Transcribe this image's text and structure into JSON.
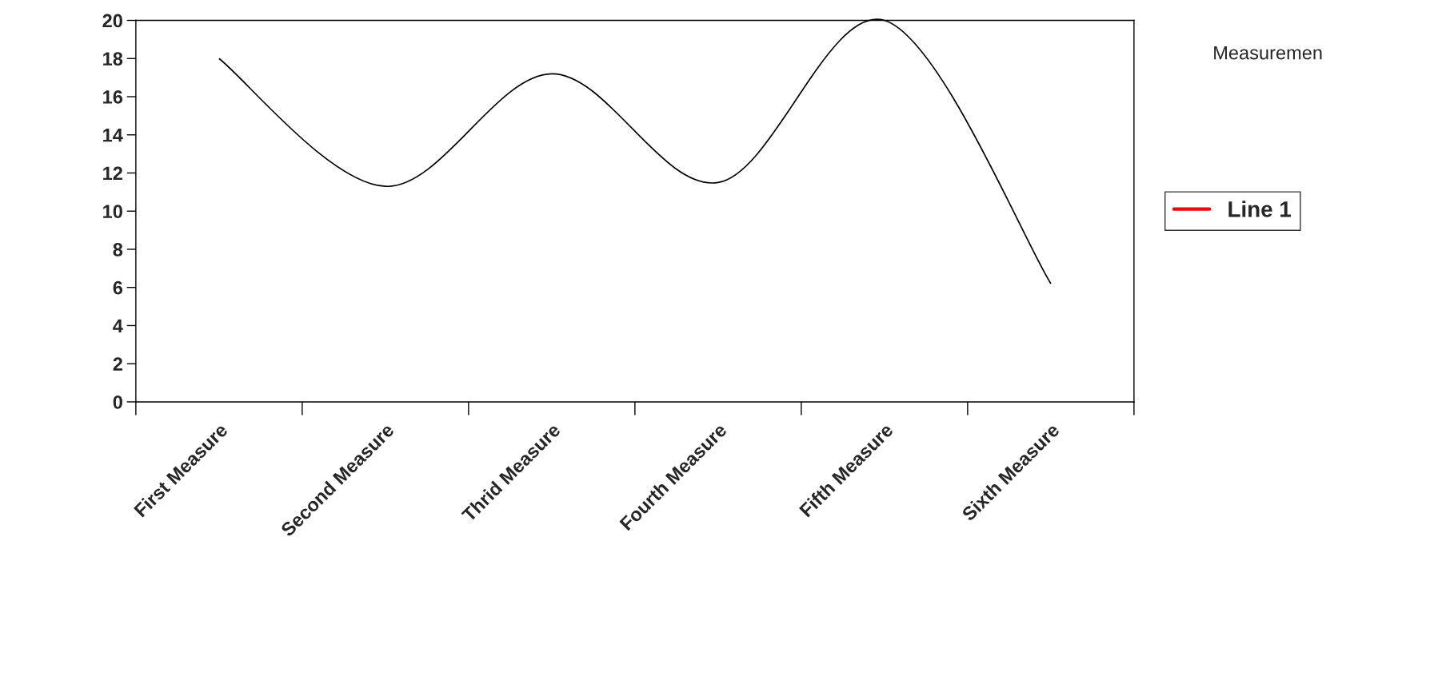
{
  "chart_data": {
    "type": "line",
    "categories": [
      "First Measure",
      "Second Measure",
      "Thrid Measure",
      "Fourth Measure",
      "Fifth Measure",
      "Sixth Measure"
    ],
    "series": [
      {
        "color": "#000000",
        "values": [
          18,
          11.3,
          17.2,
          11.5,
          20,
          6.2
        ]
      },
      {
        "name": "Line 1",
        "color": "#ff0000",
        "values": [
          null,
          null,
          null,
          null,
          null,
          null
        ]
      }
    ],
    "ylim": [
      0,
      20
    ],
    "yticks": [
      0,
      2,
      4,
      6,
      8,
      10,
      12,
      14,
      16,
      18,
      20
    ],
    "grid": false,
    "legend": "right",
    "marker": "none",
    "line_style": "solid",
    "annotations": [
      "Measuremen"
    ]
  }
}
